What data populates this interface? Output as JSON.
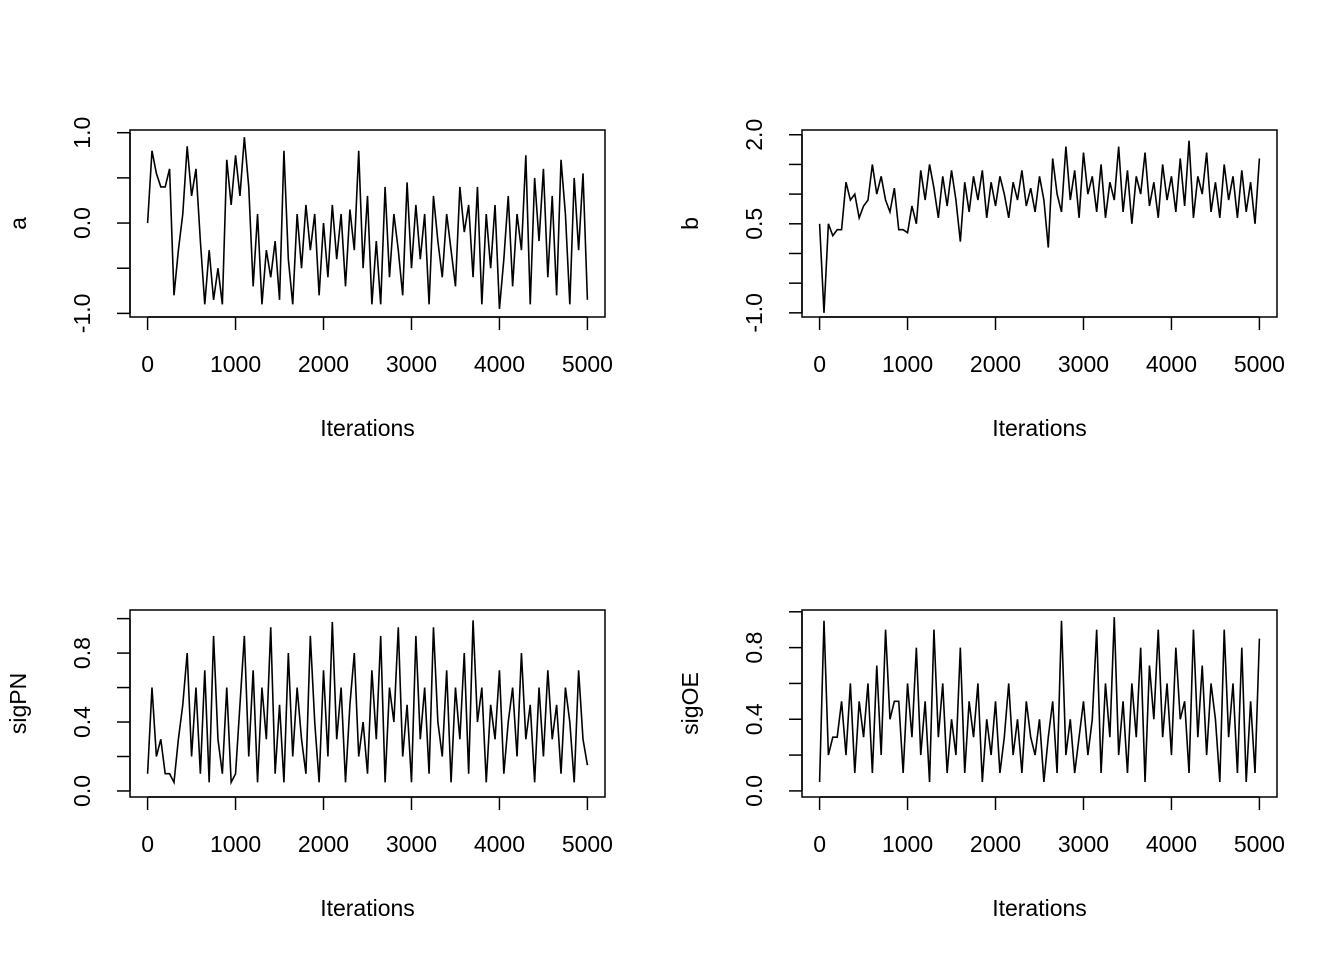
{
  "chart_data": [
    {
      "type": "line",
      "ylabel": "a",
      "xlabel": "Iterations",
      "color": "#000000",
      "xlim": [
        -200,
        5200
      ],
      "xticks": [
        0,
        1000,
        2000,
        3000,
        4000,
        5000
      ],
      "ylim": [
        -1.04,
        1.03
      ],
      "yticks": [
        {
          "value": -1.0,
          "label": "-1.0"
        },
        {
          "value": -0.5,
          "label": null
        },
        {
          "value": 0.0,
          "label": "0.0"
        },
        {
          "value": 0.5,
          "label": null
        },
        {
          "value": 1.0,
          "label": "1.0"
        }
      ],
      "x": [
        0,
        50,
        100,
        150,
        200,
        250,
        300,
        350,
        400,
        450,
        500,
        550,
        600,
        650,
        700,
        750,
        800,
        850,
        900,
        950,
        1000,
        1050,
        1100,
        1150,
        1200,
        1250,
        1300,
        1350,
        1400,
        1450,
        1500,
        1550,
        1600,
        1650,
        1700,
        1750,
        1800,
        1850,
        1900,
        1950,
        2000,
        2050,
        2100,
        2150,
        2200,
        2250,
        2300,
        2350,
        2400,
        2450,
        2500,
        2550,
        2600,
        2650,
        2700,
        2750,
        2800,
        2850,
        2900,
        2950,
        3000,
        3050,
        3100,
        3150,
        3200,
        3250,
        3300,
        3350,
        3400,
        3450,
        3500,
        3550,
        3600,
        3650,
        3700,
        3750,
        3800,
        3850,
        3900,
        3950,
        4000,
        4050,
        4100,
        4150,
        4200,
        4250,
        4300,
        4350,
        4400,
        4450,
        4500,
        4550,
        4600,
        4650,
        4700,
        4750,
        4800,
        4850,
        4900,
        4950,
        5000
      ],
      "values": [
        0.0,
        0.8,
        0.55,
        0.4,
        0.4,
        0.6,
        -0.8,
        -0.3,
        0.1,
        0.85,
        0.3,
        0.6,
        -0.2,
        -0.9,
        -0.3,
        -0.85,
        -0.5,
        -0.9,
        0.7,
        0.2,
        0.75,
        0.3,
        0.95,
        0.4,
        -0.7,
        0.1,
        -0.9,
        -0.3,
        -0.6,
        -0.2,
        -0.85,
        0.8,
        -0.4,
        -0.9,
        0.1,
        -0.5,
        0.2,
        -0.3,
        0.1,
        -0.8,
        0.0,
        -0.6,
        0.2,
        -0.4,
        0.1,
        -0.7,
        0.15,
        -0.3,
        0.8,
        -0.5,
        0.3,
        -0.9,
        -0.2,
        -0.9,
        0.4,
        -0.6,
        0.1,
        -0.3,
        -0.8,
        0.45,
        -0.5,
        0.2,
        -0.4,
        0.1,
        -0.9,
        0.3,
        -0.2,
        -0.6,
        0.1,
        -0.3,
        -0.7,
        0.4,
        -0.1,
        0.2,
        -0.6,
        0.4,
        -0.9,
        0.1,
        -0.5,
        0.2,
        -0.95,
        -0.4,
        0.3,
        -0.7,
        0.1,
        -0.3,
        0.75,
        -0.9,
        0.5,
        -0.2,
        0.6,
        -0.6,
        0.3,
        -0.8,
        0.7,
        0.1,
        -0.9,
        0.5,
        -0.3,
        0.55,
        -0.85
      ]
    },
    {
      "type": "line",
      "ylabel": "b",
      "xlabel": "Iterations",
      "color": "#000000",
      "xlim": [
        -200,
        5200
      ],
      "xticks": [
        0,
        1000,
        2000,
        3000,
        4000,
        5000
      ],
      "ylim": [
        -1.07,
        2.08
      ],
      "yticks": [
        {
          "value": -1.0,
          "label": "-1.0"
        },
        {
          "value": -0.5,
          "label": null
        },
        {
          "value": 0.0,
          "label": null
        },
        {
          "value": 0.5,
          "label": "0.5"
        },
        {
          "value": 1.0,
          "label": null
        },
        {
          "value": 1.5,
          "label": null
        },
        {
          "value": 2.0,
          "label": "2.0"
        }
      ],
      "x": [
        0,
        50,
        100,
        150,
        200,
        250,
        300,
        350,
        400,
        450,
        500,
        550,
        600,
        650,
        700,
        750,
        800,
        850,
        900,
        950,
        1000,
        1050,
        1100,
        1150,
        1200,
        1250,
        1300,
        1350,
        1400,
        1450,
        1500,
        1550,
        1600,
        1650,
        1700,
        1750,
        1800,
        1850,
        1900,
        1950,
        2000,
        2050,
        2100,
        2150,
        2200,
        2250,
        2300,
        2350,
        2400,
        2450,
        2500,
        2550,
        2600,
        2650,
        2700,
        2750,
        2800,
        2850,
        2900,
        2950,
        3000,
        3050,
        3100,
        3150,
        3200,
        3250,
        3300,
        3350,
        3400,
        3450,
        3500,
        3550,
        3600,
        3650,
        3700,
        3750,
        3800,
        3850,
        3900,
        3950,
        4000,
        4050,
        4100,
        4150,
        4200,
        4250,
        4300,
        4350,
        4400,
        4450,
        4500,
        4550,
        4600,
        4650,
        4700,
        4750,
        4800,
        4850,
        4900,
        4950,
        5000
      ],
      "values": [
        0.5,
        -1.0,
        0.5,
        0.3,
        0.4,
        0.4,
        1.2,
        0.9,
        1.0,
        0.6,
        0.8,
        0.9,
        1.5,
        1.0,
        1.3,
        0.9,
        0.7,
        1.1,
        0.4,
        0.4,
        0.35,
        0.8,
        0.5,
        1.4,
        0.9,
        1.5,
        1.1,
        0.6,
        1.3,
        0.8,
        1.4,
        0.9,
        0.2,
        1.2,
        0.7,
        1.3,
        0.9,
        1.4,
        0.6,
        1.2,
        0.8,
        1.3,
        1.0,
        0.6,
        1.2,
        0.9,
        1.4,
        0.8,
        1.1,
        0.7,
        1.3,
        0.9,
        0.1,
        1.6,
        1.0,
        0.7,
        1.8,
        0.9,
        1.4,
        0.6,
        1.7,
        1.0,
        1.3,
        0.7,
        1.5,
        0.6,
        1.2,
        0.9,
        1.8,
        0.7,
        1.4,
        0.5,
        1.3,
        1.0,
        1.7,
        0.8,
        1.2,
        0.6,
        1.5,
        0.9,
        1.3,
        0.7,
        1.6,
        0.8,
        1.9,
        0.6,
        1.3,
        1.0,
        1.7,
        0.7,
        1.2,
        0.6,
        1.5,
        0.9,
        1.3,
        0.6,
        1.4,
        0.7,
        1.2,
        0.5,
        1.6
      ]
    },
    {
      "type": "line",
      "ylabel": "sigPN",
      "xlabel": "Iterations",
      "color": "#000000",
      "xlim": [
        -200,
        5200
      ],
      "xticks": [
        0,
        1000,
        2000,
        3000,
        4000,
        5000
      ],
      "ylim": [
        -0.035,
        1.05
      ],
      "yticks": [
        {
          "value": 0.0,
          "label": "0.0"
        },
        {
          "value": 0.2,
          "label": null
        },
        {
          "value": 0.4,
          "label": "0.4"
        },
        {
          "value": 0.6,
          "label": null
        },
        {
          "value": 0.8,
          "label": "0.8"
        },
        {
          "value": 1.0,
          "label": null
        }
      ],
      "x": [
        0,
        50,
        100,
        150,
        200,
        250,
        300,
        350,
        400,
        450,
        500,
        550,
        600,
        650,
        700,
        750,
        800,
        850,
        900,
        950,
        1000,
        1050,
        1100,
        1150,
        1200,
        1250,
        1300,
        1350,
        1400,
        1450,
        1500,
        1550,
        1600,
        1650,
        1700,
        1750,
        1800,
        1850,
        1900,
        1950,
        2000,
        2050,
        2100,
        2150,
        2200,
        2250,
        2300,
        2350,
        2400,
        2450,
        2500,
        2550,
        2600,
        2650,
        2700,
        2750,
        2800,
        2850,
        2900,
        2950,
        3000,
        3050,
        3100,
        3150,
        3200,
        3250,
        3300,
        3350,
        3400,
        3450,
        3500,
        3550,
        3600,
        3650,
        3700,
        3750,
        3800,
        3850,
        3900,
        3950,
        4000,
        4050,
        4100,
        4150,
        4200,
        4250,
        4300,
        4350,
        4400,
        4450,
        4500,
        4550,
        4600,
        4650,
        4700,
        4750,
        4800,
        4850,
        4900,
        4950,
        5000
      ],
      "values": [
        0.1,
        0.6,
        0.2,
        0.3,
        0.1,
        0.1,
        0.05,
        0.3,
        0.5,
        0.8,
        0.2,
        0.6,
        0.1,
        0.7,
        0.05,
        0.9,
        0.3,
        0.1,
        0.6,
        0.05,
        0.1,
        0.5,
        0.9,
        0.2,
        0.7,
        0.05,
        0.6,
        0.3,
        0.95,
        0.1,
        0.5,
        0.05,
        0.8,
        0.2,
        0.6,
        0.3,
        0.1,
        0.9,
        0.4,
        0.05,
        0.7,
        0.2,
        0.98,
        0.3,
        0.6,
        0.05,
        0.5,
        0.8,
        0.2,
        0.4,
        0.1,
        0.7,
        0.3,
        0.9,
        0.05,
        0.6,
        0.4,
        0.95,
        0.2,
        0.5,
        0.05,
        0.9,
        0.3,
        0.6,
        0.1,
        0.95,
        0.4,
        0.2,
        0.7,
        0.05,
        0.6,
        0.3,
        0.8,
        0.1,
        0.99,
        0.4,
        0.6,
        0.05,
        0.5,
        0.3,
        0.7,
        0.1,
        0.4,
        0.6,
        0.2,
        0.8,
        0.3,
        0.5,
        0.05,
        0.6,
        0.2,
        0.7,
        0.3,
        0.5,
        0.1,
        0.6,
        0.4,
        0.05,
        0.7,
        0.3,
        0.15
      ]
    },
    {
      "type": "line",
      "ylabel": "sigOE",
      "xlabel": "Iterations",
      "color": "#000000",
      "xlim": [
        -200,
        5200
      ],
      "xticks": [
        0,
        1000,
        2000,
        3000,
        4000,
        5000
      ],
      "ylim": [
        -0.034,
        1.01
      ],
      "yticks": [
        {
          "value": 0.0,
          "label": "0.0"
        },
        {
          "value": 0.2,
          "label": null
        },
        {
          "value": 0.4,
          "label": "0.4"
        },
        {
          "value": 0.6,
          "label": null
        },
        {
          "value": 0.8,
          "label": "0.8"
        },
        {
          "value": 1.0,
          "label": null
        }
      ],
      "x": [
        0,
        50,
        100,
        150,
        200,
        250,
        300,
        350,
        400,
        450,
        500,
        550,
        600,
        650,
        700,
        750,
        800,
        850,
        900,
        950,
        1000,
        1050,
        1100,
        1150,
        1200,
        1250,
        1300,
        1350,
        1400,
        1450,
        1500,
        1550,
        1600,
        1650,
        1700,
        1750,
        1800,
        1850,
        1900,
        1950,
        2000,
        2050,
        2100,
        2150,
        2200,
        2250,
        2300,
        2350,
        2400,
        2450,
        2500,
        2550,
        2600,
        2650,
        2700,
        2750,
        2800,
        2850,
        2900,
        2950,
        3000,
        3050,
        3100,
        3150,
        3200,
        3250,
        3300,
        3350,
        3400,
        3450,
        3500,
        3550,
        3600,
        3650,
        3700,
        3750,
        3800,
        3850,
        3900,
        3950,
        4000,
        4050,
        4100,
        4150,
        4200,
        4250,
        4300,
        4350,
        4400,
        4450,
        4500,
        4550,
        4600,
        4650,
        4700,
        4750,
        4800,
        4850,
        4900,
        4950,
        5000
      ],
      "values": [
        0.05,
        0.95,
        0.2,
        0.3,
        0.3,
        0.5,
        0.2,
        0.6,
        0.1,
        0.5,
        0.3,
        0.6,
        0.1,
        0.7,
        0.2,
        0.9,
        0.4,
        0.5,
        0.5,
        0.1,
        0.6,
        0.3,
        0.8,
        0.2,
        0.5,
        0.05,
        0.9,
        0.3,
        0.6,
        0.1,
        0.4,
        0.2,
        0.8,
        0.1,
        0.5,
        0.3,
        0.6,
        0.05,
        0.4,
        0.2,
        0.5,
        0.1,
        0.3,
        0.6,
        0.2,
        0.4,
        0.1,
        0.5,
        0.3,
        0.2,
        0.4,
        0.05,
        0.3,
        0.5,
        0.1,
        0.95,
        0.2,
        0.4,
        0.1,
        0.3,
        0.5,
        0.2,
        0.4,
        0.9,
        0.1,
        0.6,
        0.3,
        0.97,
        0.2,
        0.5,
        0.1,
        0.6,
        0.3,
        0.8,
        0.05,
        0.7,
        0.4,
        0.9,
        0.3,
        0.6,
        0.2,
        0.8,
        0.4,
        0.5,
        0.1,
        0.9,
        0.3,
        0.7,
        0.2,
        0.6,
        0.4,
        0.05,
        0.9,
        0.3,
        0.6,
        0.1,
        0.8,
        0.05,
        0.5,
        0.1,
        0.85
      ]
    }
  ]
}
